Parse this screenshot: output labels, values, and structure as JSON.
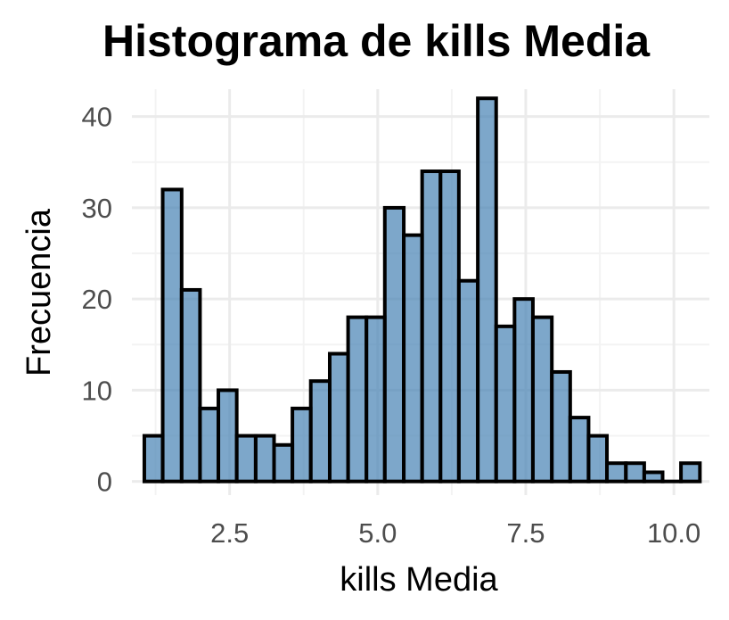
{
  "chart_data": {
    "type": "bar",
    "title": "Histograma de kills Media",
    "xlabel": "kills Media",
    "ylabel": "Frecuencia",
    "xlim": [
      0.85,
      10.6
    ],
    "ylim": [
      -1.5,
      43
    ],
    "x_ticks": [
      2.5,
      5.0,
      7.5,
      10.0
    ],
    "x_tick_labels": [
      "2.5",
      "5.0",
      "7.5",
      "10.0"
    ],
    "y_ticks": [
      0,
      10,
      20,
      30,
      40
    ],
    "y_tick_labels": [
      "0",
      "10",
      "20",
      "30",
      "40"
    ],
    "bin_width": 0.3125,
    "bins": [
      {
        "x0": 1.06,
        "x1": 1.37,
        "count": 5
      },
      {
        "x0": 1.37,
        "x1": 1.69,
        "count": 32
      },
      {
        "x0": 1.69,
        "x1": 2.0,
        "count": 21
      },
      {
        "x0": 2.0,
        "x1": 2.31,
        "count": 8
      },
      {
        "x0": 2.31,
        "x1": 2.62,
        "count": 10
      },
      {
        "x0": 2.62,
        "x1": 2.94,
        "count": 5
      },
      {
        "x0": 2.94,
        "x1": 3.25,
        "count": 5
      },
      {
        "x0": 3.25,
        "x1": 3.56,
        "count": 4
      },
      {
        "x0": 3.56,
        "x1": 3.87,
        "count": 8
      },
      {
        "x0": 3.87,
        "x1": 4.19,
        "count": 11
      },
      {
        "x0": 4.19,
        "x1": 4.5,
        "count": 14
      },
      {
        "x0": 4.5,
        "x1": 4.81,
        "count": 18
      },
      {
        "x0": 4.81,
        "x1": 5.12,
        "count": 18
      },
      {
        "x0": 5.12,
        "x1": 5.44,
        "count": 30
      },
      {
        "x0": 5.44,
        "x1": 5.75,
        "count": 27
      },
      {
        "x0": 5.75,
        "x1": 6.06,
        "count": 34
      },
      {
        "x0": 6.06,
        "x1": 6.37,
        "count": 34
      },
      {
        "x0": 6.37,
        "x1": 6.69,
        "count": 22
      },
      {
        "x0": 6.69,
        "x1": 7.0,
        "count": 42
      },
      {
        "x0": 7.0,
        "x1": 7.31,
        "count": 17
      },
      {
        "x0": 7.31,
        "x1": 7.62,
        "count": 20
      },
      {
        "x0": 7.62,
        "x1": 7.94,
        "count": 18
      },
      {
        "x0": 7.94,
        "x1": 8.25,
        "count": 12
      },
      {
        "x0": 8.25,
        "x1": 8.56,
        "count": 7
      },
      {
        "x0": 8.56,
        "x1": 8.87,
        "count": 5
      },
      {
        "x0": 8.87,
        "x1": 9.19,
        "count": 2
      },
      {
        "x0": 9.19,
        "x1": 9.5,
        "count": 2
      },
      {
        "x0": 9.5,
        "x1": 9.81,
        "count": 1
      },
      {
        "x0": 9.81,
        "x1": 10.12,
        "count": 0
      },
      {
        "x0": 10.12,
        "x1": 10.44,
        "count": 2
      }
    ],
    "grid": true,
    "legend": "none",
    "colors": {
      "bar_fill": "#4682b4",
      "bar_fill_opacity": 0.7,
      "bar_stroke": "#000000"
    }
  }
}
